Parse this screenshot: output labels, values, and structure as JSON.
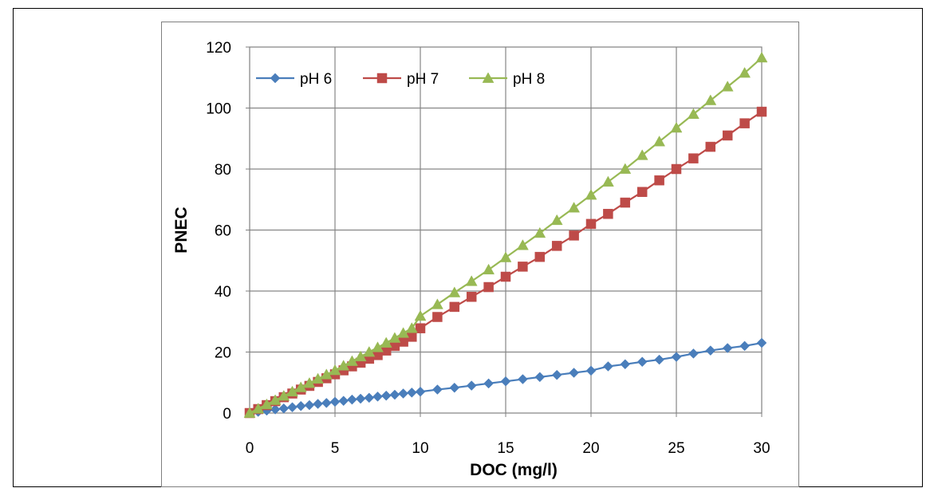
{
  "chart_data": {
    "type": "line",
    "title": "",
    "xlabel": "DOC (mg/l)",
    "ylabel": "PNEC",
    "xlim": [
      0,
      30
    ],
    "ylim": [
      0,
      120
    ],
    "xticks": [
      0,
      5,
      10,
      15,
      20,
      25,
      30
    ],
    "yticks": [
      0,
      20,
      40,
      60,
      80,
      100,
      120
    ],
    "grid": true,
    "legend_position": "top-left",
    "series": [
      {
        "name": "pH 6",
        "color": "#4a7ebb",
        "marker": "diamond",
        "x": [
          0,
          0.5,
          1,
          1.5,
          2,
          2.5,
          3,
          3.5,
          4,
          4.5,
          5,
          5.5,
          6,
          6.5,
          7,
          7.5,
          8,
          8.5,
          9,
          9.5,
          10,
          11,
          12,
          13,
          14,
          15,
          16,
          17,
          18,
          19,
          20,
          21,
          22,
          23,
          24,
          25,
          26,
          27,
          28,
          29,
          30
        ],
        "y": [
          0,
          0.4,
          0.8,
          1.2,
          1.5,
          1.9,
          2.3,
          2.6,
          3.0,
          3.3,
          3.7,
          4.0,
          4.4,
          4.7,
          5.0,
          5.4,
          5.7,
          6.0,
          6.4,
          6.7,
          7.0,
          7.7,
          8.3,
          9.0,
          9.7,
          10.4,
          11.1,
          11.8,
          12.5,
          13.2,
          13.9,
          15.3,
          16.0,
          16.8,
          17.5,
          18.4,
          19.5,
          20.5,
          21.3,
          22.0,
          23.0
        ]
      },
      {
        "name": "pH 7",
        "color": "#be4b48",
        "marker": "square",
        "x": [
          0,
          0.5,
          1,
          1.5,
          2,
          2.5,
          3,
          3.5,
          4,
          4.5,
          5,
          5.5,
          6,
          6.5,
          7,
          7.5,
          8,
          8.5,
          9,
          9.5,
          10,
          11,
          12,
          13,
          14,
          15,
          16,
          17,
          18,
          19,
          20,
          21,
          22,
          23,
          24,
          25,
          26,
          27,
          28,
          29,
          30
        ],
        "y": [
          0,
          1.3,
          2.6,
          3.9,
          5.2,
          6.4,
          7.7,
          8.9,
          10.2,
          11.4,
          12.7,
          14.0,
          15.3,
          16.5,
          17.8,
          19.0,
          20.5,
          22.0,
          23.4,
          25.0,
          27.8,
          31.5,
          34.8,
          38.1,
          41.3,
          44.7,
          48.0,
          51.2,
          54.8,
          58.2,
          62.0,
          65.3,
          69.0,
          72.5,
          76.3,
          80.0,
          83.5,
          87.3,
          91.0,
          95.0,
          98.8
        ]
      },
      {
        "name": "pH 8",
        "color": "#98b954",
        "marker": "triangle",
        "x": [
          0,
          0.5,
          1,
          1.5,
          2,
          2.5,
          3,
          3.5,
          4,
          4.5,
          5,
          5.5,
          6,
          6.5,
          7,
          7.5,
          8,
          8.5,
          9,
          9.5,
          10,
          11,
          12,
          13,
          14,
          15,
          16,
          17,
          18,
          19,
          20,
          21,
          22,
          23,
          24,
          25,
          26,
          27,
          28,
          29,
          30
        ],
        "y": [
          0,
          1.4,
          2.8,
          4.2,
          5.6,
          7.0,
          8.4,
          9.8,
          11.2,
          12.6,
          14.0,
          15.5,
          17.0,
          18.5,
          20.0,
          21.5,
          23.0,
          24.6,
          26.2,
          27.8,
          31.8,
          35.6,
          39.5,
          43.2,
          47.0,
          51.0,
          55.0,
          59.0,
          63.2,
          67.3,
          71.5,
          75.8,
          80.0,
          84.5,
          89.0,
          93.5,
          98.0,
          102.5,
          107.0,
          111.5,
          116.5
        ]
      }
    ]
  }
}
